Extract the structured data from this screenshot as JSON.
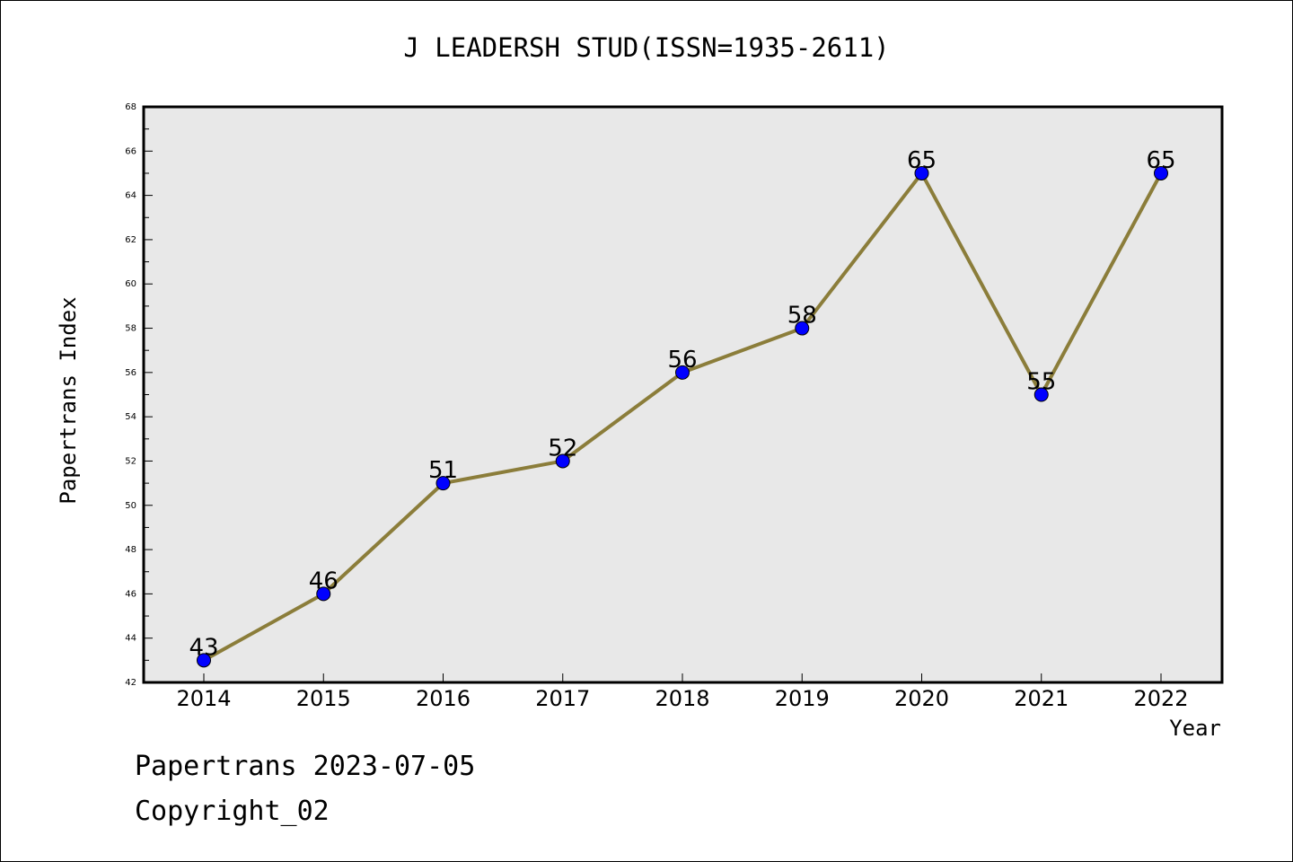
{
  "chart_data": {
    "type": "line",
    "title": "J LEADERSH STUD(ISSN=1935-2611)",
    "xlabel": "Year",
    "ylabel": "Papertrans Index",
    "categories": [
      "2014",
      "2015",
      "2016",
      "2017",
      "2018",
      "2019",
      "2020",
      "2021",
      "2022"
    ],
    "series": [
      {
        "values": [
          43,
          46,
          51,
          52,
          56,
          58,
          65,
          55,
          65
        ]
      }
    ],
    "data_labels": [
      "43",
      "46",
      "51",
      "52",
      "56",
      "58",
      "65",
      "55",
      "65"
    ],
    "ylim": [
      42,
      68
    ],
    "y_ticks": [
      42,
      44,
      46,
      48,
      50,
      52,
      54,
      56,
      58,
      60,
      62,
      64,
      66,
      68
    ],
    "grid": false,
    "legend": "none",
    "colors": {
      "line": "#8b7d3a",
      "marker": "#0000ff",
      "plot_background": "#e8e8e8",
      "axis": "#000000"
    }
  },
  "footer": {
    "line1": "Papertrans 2023-07-05",
    "line2": "Copyright_02"
  }
}
